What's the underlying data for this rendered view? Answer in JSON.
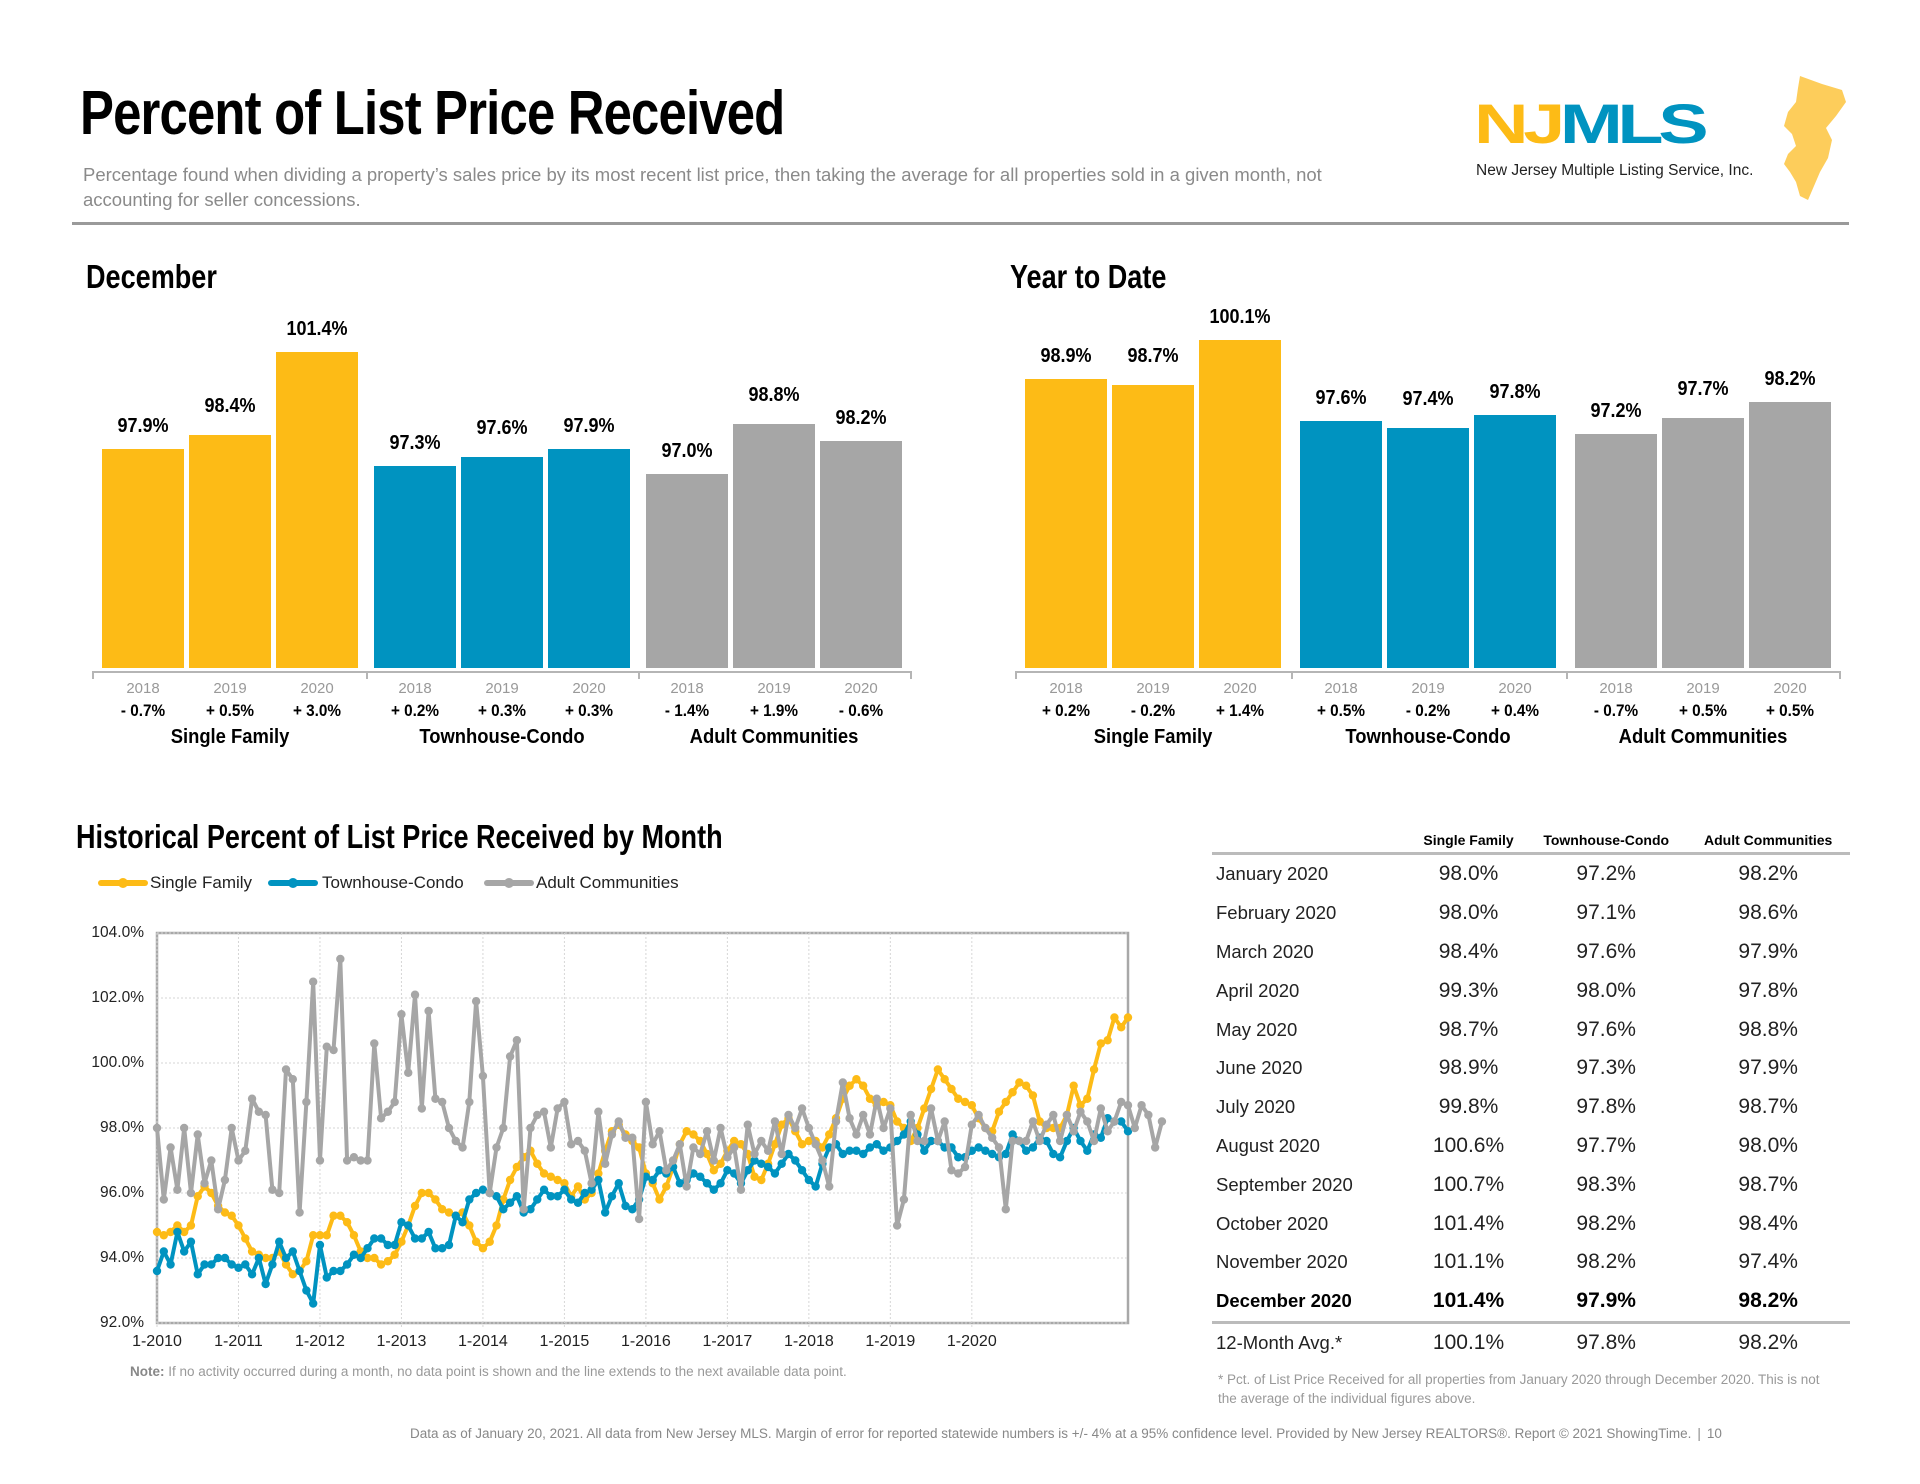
{
  "header": {
    "title": "Percent of List Price Received",
    "subtitle": "Percentage found when dividing a property’s sales price by its most recent list price, then taking the average for all properties sold in a given month, not accounting for seller concessions.",
    "logo": {
      "letters_yellow": "NJ",
      "letters_blue": "MLS",
      "caption": "New Jersey Multiple Listing Service, Inc."
    }
  },
  "colors": {
    "single_family": "#FDBB16",
    "townhouse_condo": "#0093C0",
    "adult_communities": "#A6A6A6",
    "nj_shape": "#FDCD5B"
  },
  "chart_data": [
    {
      "type": "bar",
      "title": "December",
      "groups": [
        {
          "name": "Single Family",
          "years": [
            "2018",
            "2019",
            "2020"
          ],
          "values": [
            97.9,
            98.4,
            101.4
          ],
          "labels": [
            "97.9%",
            "98.4%",
            "101.4%"
          ],
          "changes": [
            "- 0.7%",
            "+ 0.5%",
            "+ 3.0%"
          ]
        },
        {
          "name": "Townhouse-Condo",
          "years": [
            "2018",
            "2019",
            "2020"
          ],
          "values": [
            97.3,
            97.6,
            97.9
          ],
          "labels": [
            "97.3%",
            "97.6%",
            "97.9%"
          ],
          "changes": [
            "+ 0.2%",
            "+ 0.3%",
            "+ 0.3%"
          ]
        },
        {
          "name": "Adult Communities",
          "years": [
            "2018",
            "2019",
            "2020"
          ],
          "values": [
            97.0,
            98.8,
            98.2
          ],
          "labels": [
            "97.0%",
            "98.8%",
            "98.2%"
          ],
          "changes": [
            "- 1.4%",
            "+ 1.9%",
            "- 0.6%"
          ]
        }
      ]
    },
    {
      "type": "bar",
      "title": "Year to Date",
      "groups": [
        {
          "name": "Single Family",
          "years": [
            "2018",
            "2019",
            "2020"
          ],
          "values": [
            98.9,
            98.7,
            100.1
          ],
          "labels": [
            "98.9%",
            "98.7%",
            "100.1%"
          ],
          "changes": [
            "+ 0.2%",
            "- 0.2%",
            "+ 1.4%"
          ]
        },
        {
          "name": "Townhouse-Condo",
          "years": [
            "2018",
            "2019",
            "2020"
          ],
          "values": [
            97.6,
            97.4,
            97.8
          ],
          "labels": [
            "97.6%",
            "97.4%",
            "97.8%"
          ],
          "changes": [
            "+ 0.5%",
            "- 0.2%",
            "+ 0.4%"
          ]
        },
        {
          "name": "Adult Communities",
          "years": [
            "2018",
            "2019",
            "2020"
          ],
          "values": [
            97.2,
            97.7,
            98.2
          ],
          "labels": [
            "97.2%",
            "97.7%",
            "98.2%"
          ],
          "changes": [
            "- 0.7%",
            "+ 0.5%",
            "+ 0.5%"
          ]
        }
      ]
    },
    {
      "type": "line",
      "title": "Historical Percent of List Price Received by Month",
      "x_start": "1-2010",
      "x_ticks": [
        "1-2010",
        "1-2011",
        "1-2012",
        "1-2013",
        "1-2014",
        "1-2015",
        "1-2016",
        "1-2017",
        "1-2018",
        "1-2019",
        "1-2020"
      ],
      "y_ticks": [
        "92.0%",
        "94.0%",
        "96.0%",
        "98.0%",
        "100.0%",
        "102.0%",
        "104.0%"
      ],
      "ylim": [
        92,
        104
      ],
      "grid": true,
      "legend": "top-left",
      "series": [
        {
          "name": "Single Family",
          "values": [
            94.8,
            94.7,
            94.8,
            95.0,
            94.8,
            95.0,
            95.9,
            96.2,
            96.0,
            95.6,
            95.4,
            95.3,
            95.0,
            94.6,
            94.2,
            94.1,
            94.0,
            94.0,
            94.2,
            93.8,
            93.5,
            93.6,
            93.9,
            94.7,
            94.7,
            94.7,
            95.3,
            95.3,
            95.1,
            94.7,
            94.2,
            94.0,
            94.0,
            93.8,
            93.9,
            94.1,
            94.5,
            95.0,
            95.6,
            96.0,
            96.0,
            95.8,
            95.5,
            95.4,
            95.3,
            95.4,
            95.0,
            94.5,
            94.3,
            94.5,
            95.0,
            95.8,
            96.4,
            96.8,
            97.1,
            97.3,
            96.9,
            96.6,
            96.5,
            96.4,
            96.3,
            95.9,
            96.2,
            95.8,
            96.0,
            96.6,
            97.3,
            97.9,
            98.1,
            97.8,
            97.6,
            97.4,
            96.6,
            96.3,
            95.8,
            96.2,
            96.8,
            97.5,
            97.9,
            97.8,
            97.6,
            97.2,
            96.7,
            96.9,
            97.3,
            97.6,
            97.5,
            97.2,
            96.5,
            96.4,
            96.9,
            97.5,
            98.1,
            98.3,
            97.9,
            97.5,
            97.6,
            97.6,
            97.4,
            97.8,
            98.3,
            98.9,
            99.3,
            99.5,
            99.3,
            98.9,
            98.7,
            98.8,
            98.7,
            98.2,
            98.0,
            97.6,
            98.0,
            98.6,
            99.2,
            99.8,
            99.5,
            99.2,
            98.9,
            98.8,
            98.7,
            98.3,
            98.0,
            97.9,
            98.5,
            98.8,
            99.1,
            99.4,
            99.3,
            99.0,
            98.2,
            98.0,
            98.0,
            98.0,
            98.4,
            99.3,
            98.7,
            98.9,
            99.8,
            100.6,
            100.7,
            101.4,
            101.1,
            101.4
          ]
        },
        {
          "name": "Townhouse-Condo",
          "values": [
            93.6,
            94.2,
            93.8,
            94.8,
            94.2,
            94.5,
            93.5,
            93.8,
            93.8,
            94.0,
            94.0,
            93.8,
            93.7,
            93.8,
            93.5,
            94.0,
            93.2,
            93.8,
            94.5,
            94.0,
            94.2,
            93.6,
            93.0,
            92.6,
            94.4,
            93.4,
            93.6,
            93.6,
            93.8,
            94.1,
            94.0,
            94.3,
            94.6,
            94.6,
            94.4,
            94.4,
            95.1,
            95.0,
            94.6,
            94.6,
            94.8,
            94.3,
            94.3,
            94.4,
            95.3,
            95.1,
            95.8,
            96.0,
            96.1,
            96.0,
            95.9,
            95.5,
            95.7,
            95.9,
            95.4,
            95.5,
            95.8,
            96.1,
            95.9,
            95.9,
            96.1,
            95.8,
            95.7,
            96.0,
            96.1,
            96.4,
            95.4,
            95.9,
            96.3,
            95.6,
            95.5,
            95.8,
            96.5,
            96.4,
            96.7,
            96.6,
            96.8,
            96.3,
            96.4,
            96.6,
            96.5,
            96.3,
            96.1,
            96.3,
            96.7,
            96.6,
            96.3,
            96.7,
            97.0,
            96.9,
            96.8,
            96.6,
            96.9,
            97.2,
            97.0,
            96.7,
            96.4,
            96.2,
            96.9,
            97.4,
            97.5,
            97.2,
            97.3,
            97.3,
            97.2,
            97.4,
            97.5,
            97.3,
            97.4,
            97.6,
            97.8,
            98.2,
            97.8,
            97.3,
            97.6,
            97.6,
            97.4,
            97.4,
            97.1,
            97.1,
            97.3,
            97.4,
            97.3,
            97.2,
            97.1,
            97.2,
            97.8,
            97.6,
            97.3,
            97.4,
            97.7,
            97.6,
            97.2,
            97.1,
            97.6,
            98.0,
            97.6,
            97.3,
            97.8,
            97.7,
            98.3,
            98.2,
            98.2,
            97.9
          ]
        },
        {
          "name": "Adult Communities",
          "values": [
            98.0,
            95.8,
            97.4,
            96.1,
            98.0,
            96.0,
            97.8,
            96.3,
            97.0,
            95.5,
            96.4,
            98.0,
            97.0,
            97.3,
            98.9,
            98.5,
            98.4,
            96.1,
            96.0,
            99.8,
            99.5,
            95.4,
            98.8,
            102.5,
            97.0,
            100.5,
            100.4,
            103.2,
            97.0,
            97.1,
            97.0,
            97.0,
            100.6,
            98.3,
            98.5,
            98.8,
            101.5,
            99.7,
            102.1,
            98.6,
            101.6,
            98.9,
            98.8,
            98.0,
            97.6,
            97.4,
            98.8,
            101.9,
            99.6,
            96.0,
            97.4,
            98.0,
            100.2,
            100.7,
            95.5,
            98.0,
            98.4,
            98.5,
            97.4,
            98.6,
            98.8,
            97.5,
            97.6,
            97.3,
            96.3,
            98.5,
            96.9,
            97.8,
            98.2,
            97.7,
            97.7,
            95.2,
            98.8,
            97.5,
            97.9,
            96.7,
            97.0,
            97.5,
            96.2,
            97.4,
            97.2,
            97.9,
            97.0,
            98.0,
            97.1,
            97.4,
            96.1,
            98.1,
            97.2,
            97.6,
            97.3,
            98.2,
            97.2,
            98.4,
            98.0,
            98.6,
            98.0,
            97.5,
            97.0,
            96.2,
            98.2,
            99.4,
            98.3,
            97.8,
            98.4,
            97.8,
            98.9,
            98.0,
            98.6,
            95.0,
            95.8,
            98.4,
            97.6,
            97.6,
            98.6,
            97.6,
            98.2,
            96.7,
            96.6,
            96.8,
            98.1,
            98.4,
            98.0,
            97.7,
            97.4,
            95.5,
            97.6,
            97.6,
            97.6,
            98.2,
            97.6,
            98.1,
            98.4,
            97.6,
            98.4,
            97.9,
            98.5,
            98.2,
            97.6,
            98.6,
            97.9,
            98.2,
            98.8,
            98.7,
            98.0,
            98.7,
            98.4,
            97.4,
            98.2
          ]
        }
      ],
      "note_label": "Note:",
      "note": "If no activity occurred during a month, no data point is shown and the line extends to the next available data point."
    },
    {
      "type": "table",
      "columns": [
        "",
        "Single Family",
        "Townhouse-Condo",
        "Adult Communities"
      ],
      "rows": [
        {
          "month": "January 2020",
          "values": [
            "98.0%",
            "97.2%",
            "98.2%"
          ]
        },
        {
          "month": "February 2020",
          "values": [
            "98.0%",
            "97.1%",
            "98.6%"
          ]
        },
        {
          "month": "March 2020",
          "values": [
            "98.4%",
            "97.6%",
            "97.9%"
          ]
        },
        {
          "month": "April 2020",
          "values": [
            "99.3%",
            "98.0%",
            "97.8%"
          ]
        },
        {
          "month": "May 2020",
          "values": [
            "98.7%",
            "97.6%",
            "98.8%"
          ]
        },
        {
          "month": "June 2020",
          "values": [
            "98.9%",
            "97.3%",
            "97.9%"
          ]
        },
        {
          "month": "July 2020",
          "values": [
            "99.8%",
            "97.8%",
            "98.7%"
          ]
        },
        {
          "month": "August 2020",
          "values": [
            "100.6%",
            "97.7%",
            "98.0%"
          ]
        },
        {
          "month": "September 2020",
          "values": [
            "100.7%",
            "98.3%",
            "98.7%"
          ]
        },
        {
          "month": "October 2020",
          "values": [
            "101.4%",
            "98.2%",
            "98.4%"
          ]
        },
        {
          "month": "November 2020",
          "values": [
            "101.1%",
            "98.2%",
            "97.4%"
          ]
        },
        {
          "month": "December 2020",
          "values": [
            "101.4%",
            "97.9%",
            "98.2%"
          ],
          "bold": true
        }
      ],
      "avg_row": {
        "month": "12-Month Avg.*",
        "values": [
          "100.1%",
          "97.8%",
          "98.2%"
        ]
      },
      "footnote": "* Pct. of List Price Received for all properties from January 2020 through December 2020. This is not the average of the individual figures above."
    }
  ],
  "footer": {
    "text": "Data as of January 20, 2021. All data from New Jersey MLS. Margin of error for reported statewide numbers is +/- 4% at a 95% confidence level. Provided by New Jersey REALTORS®. Report © 2021 ShowingTime.",
    "page_number": "10"
  }
}
